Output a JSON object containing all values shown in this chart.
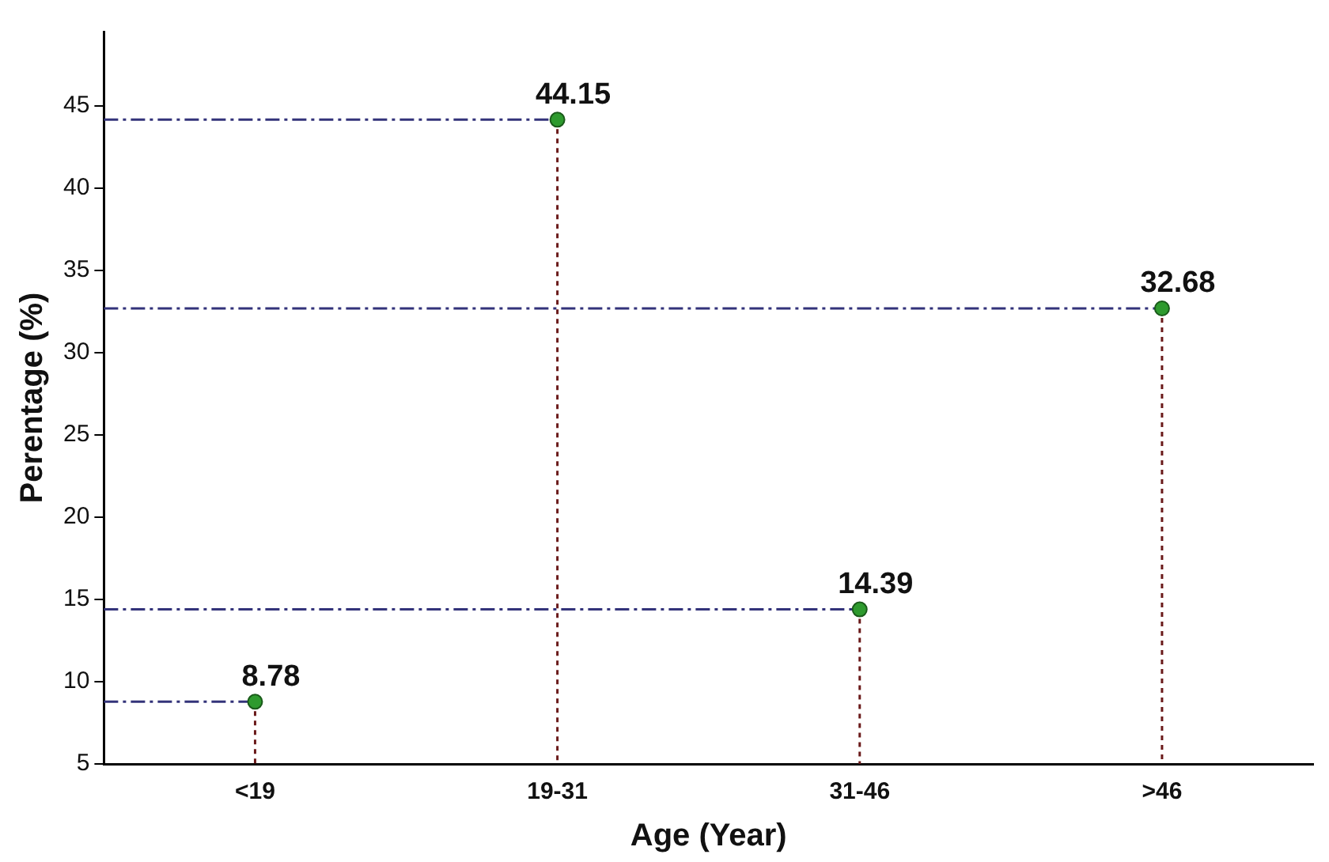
{
  "chart_data": {
    "type": "lollipop",
    "xlabel": "Age (Year)",
    "ylabel": "Perentage (%)",
    "categories": [
      "<19",
      "19-31",
      "31-46",
      ">46"
    ],
    "values": [
      8.78,
      44.15,
      14.39,
      32.68
    ],
    "color": "#2e9a2e",
    "marker": "circle",
    "data_labels": true,
    "ref_lines": [
      {
        "axis": "y",
        "value": 8.78,
        "color": "#33337a",
        "line_style": "dashed"
      },
      {
        "axis": "y",
        "value": 44.15,
        "color": "#33337a",
        "line_style": "dashed"
      },
      {
        "axis": "y",
        "value": 14.39,
        "color": "#33337a",
        "line_style": "dashed"
      },
      {
        "axis": "y",
        "value": 32.68,
        "color": "#33337a",
        "line_style": "dashed"
      }
    ],
    "ylim": [
      5,
      49.5
    ],
    "yticks": [
      5,
      10,
      15,
      20,
      25,
      30,
      35,
      40,
      45
    ],
    "grid": false,
    "legend": false
  }
}
